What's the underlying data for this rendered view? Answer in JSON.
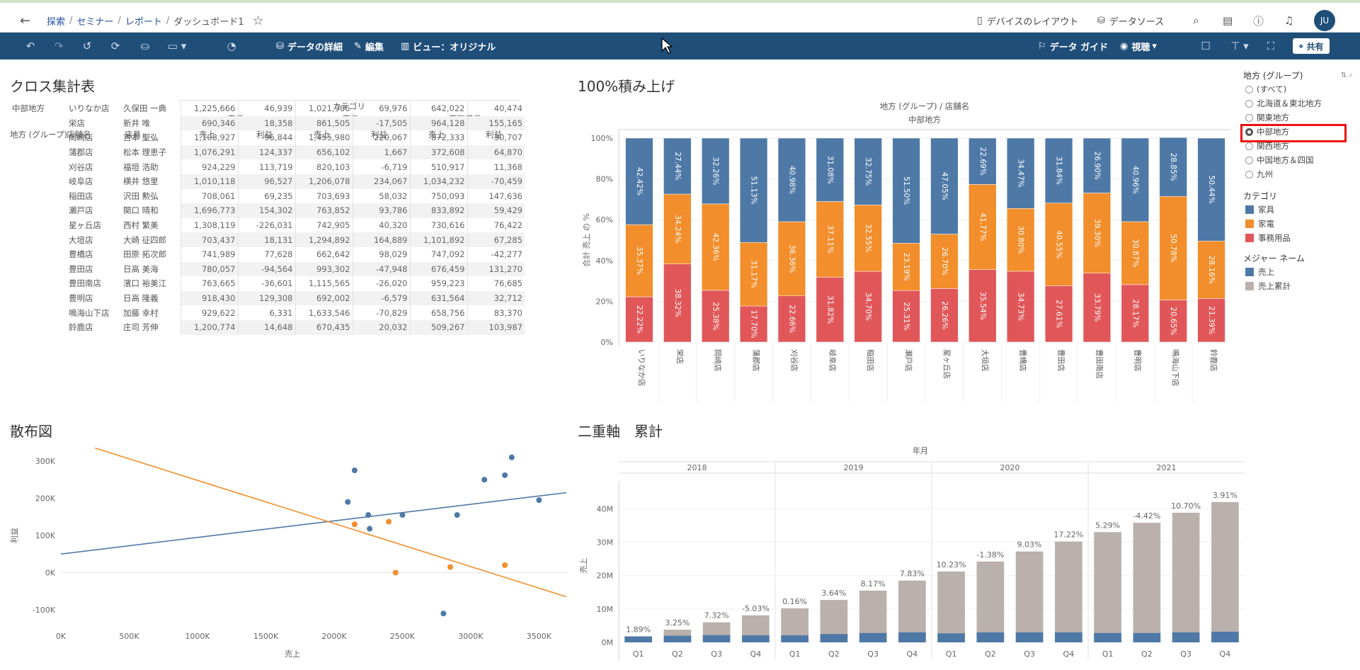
{
  "topbar": {
    "breadcrumbs": [
      "探索",
      "セミナー",
      "レポート",
      "ダッシュボード1"
    ],
    "device_layout": "デバイスのレイアウト",
    "data_source": "データソース",
    "avatar": "JU"
  },
  "toolbar": {
    "data_details": "データの詳細",
    "edit": "編集",
    "view": "ビュー：オリジナル",
    "data_guide": "データ ガイド",
    "viewing": "視聴",
    "share": "共有"
  },
  "crosstab": {
    "title": "クロス集計表",
    "top_header": "カテゴリ",
    "categories": [
      "家具",
      "家電",
      "事務用品"
    ],
    "measures": [
      "売上",
      "利益"
    ],
    "row_headers": [
      "地方 (グループ)",
      "店舗名",
      "店員"
    ],
    "region": "中部地方",
    "rows": [
      [
        "いりなか店",
        "久保田 一典",
        "1,225,666",
        "46,939",
        "1,021,986",
        "69,976",
        "642,022",
        "40,474"
      ],
      [
        "栄店",
        "新井 唯",
        "690,346",
        "18,358",
        "861,505",
        "-17,505",
        "964,128",
        "155,165"
      ],
      [
        "岡崎店",
        "吉本 聖弘",
        "1,108,927",
        "-96,844",
        "1,455,980",
        "220,067",
        "872,333",
        "30,707"
      ],
      [
        "蒲郡店",
        "松本 理恵子",
        "1,076,291",
        "124,337",
        "656,102",
        "1,667",
        "372,608",
        "64,870"
      ],
      [
        "刈谷店",
        "福垣 浩助",
        "924,229",
        "113,719",
        "820,103",
        "-6,719",
        "510,917",
        "11,368"
      ],
      [
        "岐阜店",
        "横井 悠里",
        "1,010,118",
        "96,527",
        "1,206,078",
        "234,067",
        "1,034,232",
        "-70,459"
      ],
      [
        "稲田店",
        "沢田 勲弘",
        "708,061",
        "69,235",
        "703,693",
        "58,032",
        "750,093",
        "147,636"
      ],
      [
        "瀬戸店",
        "関口 晴和",
        "1,696,773",
        "154,302",
        "763,852",
        "93,786",
        "833,892",
        "59,429"
      ],
      [
        "星ヶ丘店",
        "西村 繁美",
        "1,308,119",
        "-226,031",
        "742,905",
        "40,320",
        "730,616",
        "76,422"
      ],
      [
        "大垣店",
        "大崎 征四郎",
        "703,437",
        "18,131",
        "1,294,892",
        "164,889",
        "1,101,892",
        "67,285"
      ],
      [
        "豊橋店",
        "田原 拓次郎",
        "741,989",
        "77,628",
        "662,642",
        "98,029",
        "747,092",
        "-42,277"
      ],
      [
        "豊田店",
        "日高 美海",
        "780,057",
        "-94,564",
        "993,302",
        "-47,948",
        "676,459",
        "131,270"
      ],
      [
        "豊田南店",
        "濱口 裕美江",
        "763,665",
        "-36,601",
        "1,115,565",
        "-26,020",
        "959,223",
        "76,685"
      ],
      [
        "豊明店",
        "日高 隆義",
        "918,430",
        "129,308",
        "692,002",
        "-6,579",
        "631,564",
        "32,712"
      ],
      [
        "鳴海山下店",
        "加藤 幸村",
        "929,622",
        "6,331",
        "1,633,546",
        "-70,829",
        "658,756",
        "83,370"
      ],
      [
        "鈴鹿店",
        "庄司 芳伸",
        "1,200,774",
        "14,648",
        "670,435",
        "20,032",
        "509,267",
        "103,987"
      ]
    ]
  },
  "stacked": {
    "title": "100%積み上げ",
    "header": "地方 (グループ) / 店舗名",
    "subheader": "中部地方",
    "ylabel": "合計 売上 の %"
  },
  "scatter": {
    "title": "散布図"
  },
  "dual": {
    "title": "二重軸　累計",
    "header": "年月"
  },
  "filters": {
    "region_title": "地方 (グループ)",
    "regions": [
      "(すべて)",
      "北海道＆東北地方",
      "関東地方",
      "中部地方",
      "関西地方",
      "中国地方＆四国",
      "九州"
    ],
    "selected": "中部地方",
    "category_title": "カテゴリ",
    "category_items": [
      "家具",
      "家電",
      "事務用品"
    ],
    "measure_title": "メジャー ネーム",
    "measure_items": [
      "売上",
      "売上累計"
    ]
  },
  "colors": {
    "furniture": "#4e79a7",
    "appliance": "#f28e2b",
    "office": "#e15759",
    "cumulative": "#bab0ac",
    "toolbar": "#1f4e79"
  },
  "chart_data": [
    {
      "type": "bar",
      "stacked": "100%",
      "title": "100%積み上げ",
      "ylabel": "合計 売上 の %",
      "yticks": [
        "0%",
        "20%",
        "40%",
        "60%",
        "80%",
        "100%"
      ],
      "categories": [
        "いりなか店",
        "栄店",
        "岡崎店",
        "蒲郡店",
        "刈谷店",
        "岐阜店",
        "稲田店",
        "瀬戸店",
        "星ヶ丘店",
        "大垣店",
        "豊橋店",
        "豊田店",
        "豊田南店",
        "豊明店",
        "鳴海山下店",
        "鈴鹿店"
      ],
      "series": [
        {
          "name": "事務用品",
          "values": [
            22.22,
            38.32,
            25.38,
            17.7,
            22.66,
            31.82,
            34.7,
            25.31,
            26.26,
            35.54,
            34.73,
            27.61,
            33.79,
            28.17,
            20.65,
            21.39
          ]
        },
        {
          "name": "家電",
          "values": [
            35.37,
            34.24,
            42.36,
            31.17,
            36.36,
            37.11,
            32.55,
            23.19,
            26.7,
            41.77,
            30.8,
            40.55,
            39.3,
            30.87,
            50.78,
            28.16
          ]
        },
        {
          "name": "家具",
          "values": [
            42.42,
            27.44,
            32.26,
            51.13,
            40.98,
            31.08,
            32.75,
            51.5,
            47.05,
            22.69,
            34.47,
            31.84,
            26.9,
            40.96,
            28.85,
            50.44
          ]
        }
      ],
      "labels": [
        {
          "name": "事務用品",
          "values": [
            "22.22%",
            "38.32%",
            "25.38%",
            "17.70%",
            "22.66%",
            "31.82%",
            "34.70%",
            "25.31%",
            "26.26%",
            "35.54%",
            "34.73%",
            "27.61%",
            "33.79%",
            "28.17%",
            "20.65%",
            "21.39%"
          ]
        },
        {
          "name": "家電",
          "values": [
            "35.37%",
            "34.24%",
            "42.36%",
            "31.17%",
            "36.36%",
            "37.11%",
            "32.55%",
            "23.19%",
            "26.70%",
            "41.77%",
            "30.80%",
            "40.55%",
            "39.30%",
            "30.87%",
            "50.78%",
            "28.16%"
          ]
        },
        {
          "name": "家具",
          "values": [
            "42.42%",
            "27.44%",
            "32.26%",
            "51.13%",
            "40.98%",
            "31.08%",
            "32.75%",
            "51.50%",
            "47.05%",
            "22.69%",
            "34.47%",
            "31.84%",
            "26.90%",
            "40.96%",
            "28.85%",
            "50.44%"
          ]
        }
      ]
    },
    {
      "type": "scatter",
      "title": "散布図",
      "xlabel": "売上",
      "ylabel": "利益",
      "xlim": [
        0,
        3700000
      ],
      "ylim": [
        -140000,
        340000
      ],
      "xticks": [
        0,
        500000,
        1000000,
        1500000,
        2000000,
        2500000,
        3000000,
        3500000
      ],
      "xtick_labels": [
        "0K",
        "500K",
        "1000K",
        "1500K",
        "2000K",
        "2500K",
        "3000K",
        "3500K"
      ],
      "yticks": [
        -100000,
        0,
        100000,
        200000,
        300000
      ],
      "ytick_labels": [
        "-100K",
        "0K",
        "100K",
        "200K",
        "300K"
      ],
      "series": [
        {
          "color": "#4e79a7",
          "points": [
            [
              2100000,
              190000
            ],
            [
              2150000,
              275000
            ],
            [
              2250000,
              155000
            ],
            [
              2260000,
              118000
            ],
            [
              2500000,
              155000
            ],
            [
              2800000,
              -110000
            ],
            [
              2900000,
              155000
            ],
            [
              3100000,
              250000
            ],
            [
              3250000,
              262000
            ],
            [
              3300000,
              310000
            ],
            [
              3500000,
              195000
            ]
          ],
          "trend": [
            [
              0,
              50000
            ],
            [
              3700000,
              215000
            ]
          ]
        },
        {
          "color": "#f28e2b",
          "points": [
            [
              2150000,
              130000
            ],
            [
              2400000,
              137000
            ],
            [
              2450000,
              0
            ],
            [
              2850000,
              15000
            ],
            [
              3250000,
              20000
            ]
          ],
          "trend": [
            [
              250000,
              335000
            ],
            [
              3700000,
              -65000
            ]
          ]
        }
      ]
    },
    {
      "type": "bar",
      "title": "二重軸　累計",
      "ylabel": "売上",
      "years": [
        "2018",
        "2019",
        "2020",
        "2021"
      ],
      "categories": [
        "Q1",
        "Q2",
        "Q3",
        "Q4",
        "Q1",
        "Q2",
        "Q3",
        "Q4",
        "Q1",
        "Q2",
        "Q3",
        "Q4",
        "Q1",
        "Q2",
        "Q3",
        "Q4"
      ],
      "ylim": [
        0,
        46000000
      ],
      "yticks": [
        0,
        10000000,
        20000000,
        30000000,
        40000000
      ],
      "ytick_labels": [
        "0M",
        "10M",
        "20M",
        "30M",
        "40M"
      ],
      "series": [
        {
          "name": "売上累計",
          "values": [
            1800000,
            3800000,
            6000000,
            8100000,
            10200000,
            12700000,
            15500000,
            18500000,
            21200000,
            24200000,
            27200000,
            30200000,
            33000000,
            35800000,
            38800000,
            42000000
          ]
        },
        {
          "name": "売上",
          "values": [
            1800000,
            2000000,
            2200000,
            2100000,
            2100000,
            2500000,
            2800000,
            3000000,
            2700000,
            3000000,
            3000000,
            3000000,
            2800000,
            2800000,
            3000000,
            3200000
          ]
        }
      ],
      "data_labels": [
        "1.89%",
        "3.25%",
        "7.32%",
        "-5.03%",
        "0.16%",
        "3.64%",
        "8.17%",
        "7.83%",
        "10.23%",
        "-1.38%",
        "9.03%",
        "17.22%",
        "5.29%",
        "-4.42%",
        "10.70%",
        "3.91%"
      ]
    }
  ]
}
